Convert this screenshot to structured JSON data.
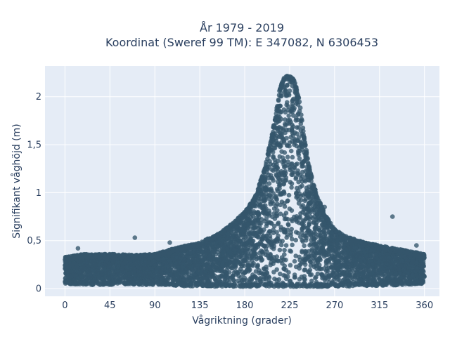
{
  "chart_data": {
    "type": "scatter",
    "title_line1": "År 1979 - 2019",
    "title_line2": "Koordinat (Sweref 99 TM): E 347082, N 6306453",
    "xlabel": "Vågriktning (grader)",
    "ylabel": "Signifikant våghöjd (m)",
    "xlim": [
      -20,
      375
    ],
    "ylim": [
      -0.08,
      2.32
    ],
    "xticks": [
      0,
      45,
      90,
      135,
      180,
      225,
      270,
      315,
      360
    ],
    "xtick_labels": [
      "0",
      "45",
      "90",
      "135",
      "180",
      "225",
      "270",
      "315",
      "360"
    ],
    "yticks": [
      0,
      0.5,
      1,
      1.5,
      2
    ],
    "ytick_labels": [
      "0",
      "0,5",
      "1",
      "1,5",
      "2"
    ],
    "grid": true,
    "colors": {
      "marker": "#34566c",
      "plot_bg": "#e5ecf6",
      "grid": "#ffffff",
      "text": "#2a3f5f"
    },
    "envelope": {
      "x": [
        0,
        20,
        45,
        70,
        90,
        110,
        135,
        155,
        170,
        180,
        190,
        200,
        210,
        215,
        220,
        225,
        230,
        235,
        240,
        245,
        250,
        260,
        270,
        280,
        300,
        320,
        340,
        360
      ],
      "upper": [
        0.33,
        0.36,
        0.36,
        0.35,
        0.36,
        0.42,
        0.48,
        0.58,
        0.7,
        0.8,
        0.95,
        1.25,
        1.75,
        2.08,
        2.22,
        2.22,
        2.17,
        1.95,
        1.55,
        1.25,
        1.05,
        0.78,
        0.62,
        0.55,
        0.48,
        0.44,
        0.4,
        0.36
      ],
      "lower": [
        0.05,
        0.04,
        0.04,
        0.04,
        0.04,
        0.03,
        0.02,
        0.02,
        0.02,
        0.02,
        0.02,
        0.02,
        0.02,
        0.02,
        0.02,
        0.02,
        0.02,
        0.02,
        0.02,
        0.02,
        0.02,
        0.02,
        0.02,
        0.02,
        0.03,
        0.03,
        0.04,
        0.05
      ]
    },
    "outliers": [
      {
        "x": 13,
        "y": 0.42
      },
      {
        "x": 70,
        "y": 0.53
      },
      {
        "x": 105,
        "y": 0.48
      },
      {
        "x": 328,
        "y": 0.75
      },
      {
        "x": 352,
        "y": 0.45
      },
      {
        "x": 260,
        "y": 0.85
      }
    ]
  }
}
